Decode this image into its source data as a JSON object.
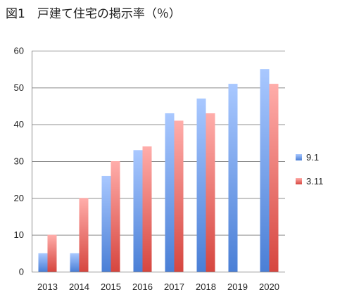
{
  "chart_data": {
    "type": "bar",
    "title": "図1　戸建て住宅の掲示率（％）",
    "categories": [
      "2013",
      "2014",
      "2015",
      "2016",
      "2017",
      "2018",
      "2019",
      "2020"
    ],
    "series": [
      {
        "name": "9.1",
        "values": [
          5,
          5,
          26,
          33,
          43,
          47,
          51,
          55
        ],
        "color": "#4f86d9"
      },
      {
        "name": "3.11",
        "values": [
          10,
          20,
          30,
          34,
          41,
          43,
          null,
          51
        ],
        "color": "#d9504c"
      }
    ],
    "xlabel": "",
    "ylabel": "",
    "ylim": [
      0,
      60
    ],
    "yticks": [
      0,
      10,
      20,
      30,
      40,
      50,
      60
    ],
    "grid": true,
    "legend": "right"
  }
}
